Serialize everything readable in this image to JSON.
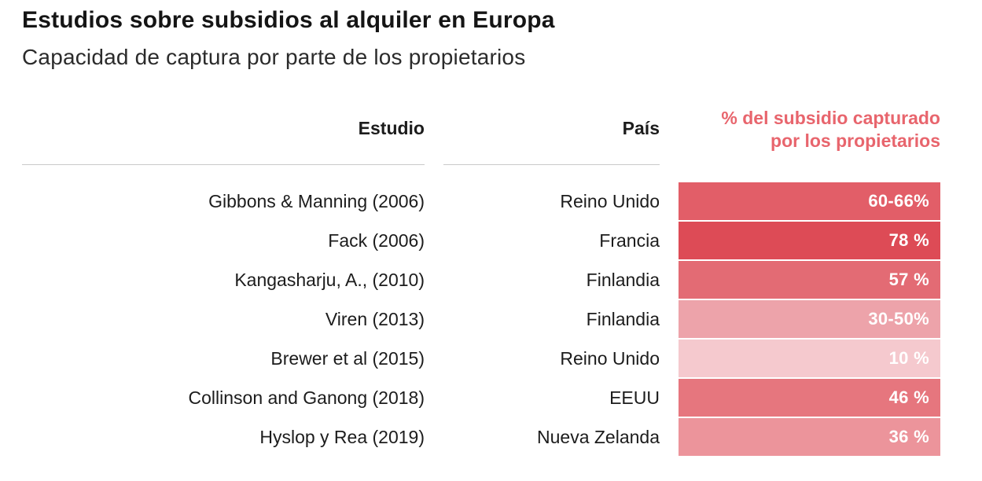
{
  "title": "Estudios sobre subsidios al alquiler en Europa",
  "subtitle": "Capacidad de captura por parte de los propietarios",
  "table": {
    "headers": {
      "study": "Estudio",
      "country": "País",
      "value_line1": "% del subsidio capturado",
      "value_line2": "por los propietarios"
    },
    "accent_color": "#e8656d"
  },
  "chart_data": {
    "type": "table",
    "title": "Estudios sobre subsidios al alquiler en Europa",
    "subtitle": "Capacidad de captura por parte de los propietarios",
    "columns": [
      "Estudio",
      "País",
      "% del subsidio capturado por los propietarios"
    ],
    "rows": [
      {
        "study": "Gibbons & Manning (2006)",
        "country": "Reino Unido",
        "label": "60-66%",
        "value_pct": 63,
        "bar_color": "#e25e68"
      },
      {
        "study": "Fack (2006)",
        "country": "Francia",
        "label": "78 %",
        "value_pct": 78,
        "bar_color": "#dd4b56"
      },
      {
        "study": "Kangasharju, A., (2010)",
        "country": "Finlandia",
        "label": "57 %",
        "value_pct": 57,
        "bar_color": "#e36b74"
      },
      {
        "study": "Viren (2013)",
        "country": "Finlandia",
        "label": "30-50%",
        "value_pct": 40,
        "bar_color": "#eda3aa"
      },
      {
        "study": "Brewer et al (2015)",
        "country": "Reino Unido",
        "label": "10 %",
        "value_pct": 10,
        "bar_color": "#f5c9ce"
      },
      {
        "study": "Collinson and Ganong (2018)",
        "country": "EEUU",
        "label": "46 %",
        "value_pct": 46,
        "bar_color": "#e6767e"
      },
      {
        "study": "Hyslop y Rea (2019)",
        "country": "Nueva Zelanda",
        "label": "36 %",
        "value_pct": 36,
        "bar_color": "#ec949b"
      }
    ]
  }
}
